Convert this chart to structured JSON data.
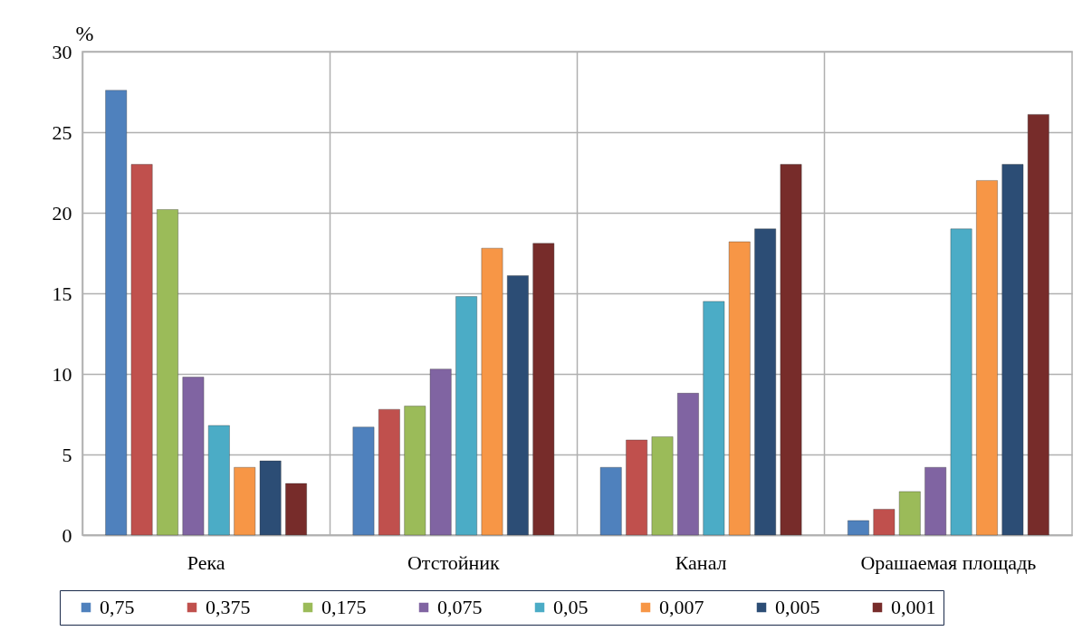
{
  "chart_data": {
    "type": "bar",
    "ylabel": "%",
    "categories": [
      "Река",
      "Отстойник",
      "Канал",
      "Орашаемая  площадь"
    ],
    "series": [
      {
        "name": "0,75",
        "color": "#4f81bd",
        "values": [
          27.6,
          6.7,
          4.2,
          0.9
        ]
      },
      {
        "name": "0,375",
        "color": "#c0504d",
        "values": [
          23.0,
          7.8,
          5.9,
          1.6
        ]
      },
      {
        "name": "0,175",
        "color": "#9bbb59",
        "values": [
          20.2,
          8.0,
          6.1,
          2.7
        ]
      },
      {
        "name": "0,075",
        "color": "#8064a2",
        "values": [
          9.8,
          10.3,
          8.8,
          4.2
        ]
      },
      {
        "name": "0,05",
        "color": "#4bacc6",
        "values": [
          6.8,
          14.8,
          14.5,
          19.0
        ]
      },
      {
        "name": "0,007",
        "color": "#f79646",
        "values": [
          4.2,
          17.8,
          18.2,
          22.0
        ]
      },
      {
        "name": "0,005",
        "color": "#2c4d75",
        "values": [
          4.6,
          16.1,
          19.0,
          23.0
        ]
      },
      {
        "name": "0,001",
        "color": "#772c2a",
        "values": [
          3.2,
          18.1,
          23.0,
          26.1
        ]
      }
    ],
    "ylim": [
      0,
      30
    ],
    "yticks": [
      0,
      5,
      10,
      15,
      20,
      25,
      30
    ],
    "grid": true,
    "legend": "bottom"
  }
}
